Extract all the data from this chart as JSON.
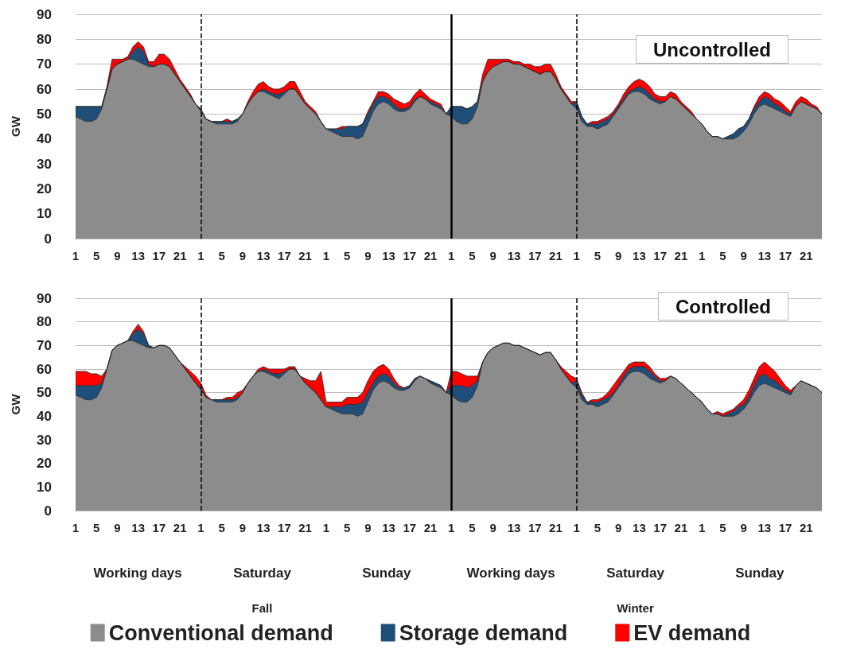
{
  "chart_data": [
    {
      "type": "area",
      "stacked": true,
      "title": "Uncontrolled",
      "ylabel": "GW",
      "categories": [
        "1",
        null,
        null,
        null,
        "5",
        null,
        null,
        null,
        "9",
        null,
        null,
        null,
        "13",
        null,
        null,
        null,
        "17",
        null,
        null,
        null,
        "21",
        null,
        null,
        null,
        "1",
        null,
        null,
        null,
        "5",
        null,
        null,
        null,
        "9",
        null,
        null,
        null,
        "13",
        null,
        null,
        null,
        "17",
        null,
        null,
        null,
        "21",
        null,
        null,
        null,
        "1",
        null,
        null,
        null,
        "5",
        null,
        null,
        null,
        "9",
        null,
        null,
        null,
        "13",
        null,
        null,
        null,
        "17",
        null,
        null,
        null,
        "21",
        null,
        null,
        null,
        "1",
        null,
        null,
        null,
        "5",
        null,
        null,
        null,
        "9",
        null,
        null,
        null,
        "13",
        null,
        null,
        null,
        "17",
        null,
        null,
        null,
        "21",
        null,
        null,
        null,
        "1",
        null,
        null,
        null,
        "5",
        null,
        null,
        null,
        "9",
        null,
        null,
        null,
        "13",
        null,
        null,
        null,
        "17",
        null,
        null,
        null,
        "21",
        null,
        null,
        null,
        "1",
        null,
        null,
        null,
        "5",
        null,
        null,
        null,
        "9",
        null,
        null,
        null,
        "13",
        null,
        null,
        null,
        "17",
        null,
        null,
        null,
        "21",
        null,
        null,
        null
      ],
      "ylim": [
        0,
        90
      ],
      "yticks": [
        0,
        10,
        20,
        30,
        40,
        50,
        60,
        70,
        80,
        90
      ],
      "grid": "y",
      "series": [
        {
          "color": "#8c8c8c",
          "values": [
            49,
            48,
            47,
            47,
            48,
            52,
            60,
            68,
            70,
            71,
            72,
            72,
            71,
            70,
            69,
            69,
            70,
            70,
            69,
            66,
            63,
            60,
            57,
            54,
            51,
            48,
            47,
            46,
            46,
            46,
            46,
            47,
            50,
            54,
            57,
            59,
            59,
            58,
            57,
            56,
            58,
            60,
            60,
            57,
            54,
            52,
            50,
            47,
            44,
            43,
            42,
            41,
            41,
            41,
            40,
            41,
            46,
            51,
            54,
            55,
            54,
            52,
            51,
            51,
            52,
            55,
            57,
            56,
            54,
            53,
            52,
            50,
            49,
            47,
            46,
            46,
            48,
            53,
            63,
            67,
            69,
            70,
            71,
            71,
            70,
            70,
            69,
            68,
            67,
            66,
            67,
            67,
            64,
            60,
            57,
            54,
            52,
            47,
            45,
            45,
            44,
            45,
            46,
            49,
            52,
            55,
            58,
            59,
            59,
            58,
            56,
            55,
            54,
            55,
            57,
            56,
            54,
            52,
            50,
            48,
            46,
            43,
            41,
            41,
            40,
            40,
            40,
            41,
            43,
            46,
            50,
            53,
            54,
            53,
            52,
            51,
            50,
            49,
            53,
            55,
            54,
            53,
            52,
            50
          ]
        },
        {
          "color": "#1f4e79",
          "values": [
            4,
            5,
            6,
            6,
            5,
            1,
            0,
            0,
            0,
            0,
            0,
            3,
            6,
            5,
            1,
            0,
            0,
            0,
            0,
            0,
            0,
            0,
            0,
            0,
            1,
            0,
            0,
            1,
            1,
            1,
            1,
            1,
            0,
            0,
            0,
            0,
            1,
            1,
            1,
            2,
            1,
            0,
            0,
            0,
            0,
            0,
            0,
            0,
            0,
            1,
            2,
            3,
            4,
            4,
            5,
            5,
            4,
            3,
            3,
            2,
            2,
            2,
            1,
            1,
            1,
            1,
            0,
            0,
            1,
            1,
            1,
            0,
            4,
            6,
            7,
            6,
            5,
            2,
            0,
            0,
            0,
            0,
            0,
            0,
            0,
            0,
            0,
            0,
            0,
            0,
            0,
            0,
            0,
            0,
            0,
            0,
            3,
            2,
            1,
            1,
            2,
            2,
            2,
            1,
            1,
            1,
            1,
            1,
            2,
            2,
            2,
            1,
            1,
            0,
            0,
            0,
            0,
            0,
            0,
            0,
            0,
            0,
            0,
            0,
            0,
            1,
            2,
            3,
            2,
            2,
            2,
            2,
            3,
            3,
            2,
            2,
            1,
            1,
            0,
            0,
            0,
            0,
            0,
            0
          ]
        },
        {
          "color": "#ff0000",
          "values": [
            0,
            0,
            0,
            0,
            0,
            0,
            1,
            4,
            2,
            1,
            1,
            2,
            2,
            2,
            1,
            2,
            4,
            4,
            3,
            2,
            1,
            1,
            1,
            0,
            0,
            0,
            0,
            0,
            0,
            1,
            0,
            0,
            0,
            1,
            2,
            3,
            3,
            2,
            2,
            2,
            2,
            3,
            3,
            2,
            1,
            1,
            1,
            0,
            0,
            0,
            0,
            1,
            0,
            0,
            0,
            0,
            1,
            1,
            2,
            2,
            2,
            2,
            3,
            2,
            2,
            2,
            3,
            2,
            1,
            1,
            1,
            0,
            0,
            0,
            0,
            0,
            0,
            0,
            3,
            5,
            3,
            2,
            1,
            1,
            1,
            1,
            1,
            2,
            2,
            3,
            3,
            3,
            2,
            1,
            1,
            1,
            0,
            0,
            0,
            1,
            1,
            1,
            1,
            1,
            1,
            2,
            2,
            3,
            3,
            3,
            3,
            2,
            2,
            2,
            2,
            2,
            1,
            1,
            1,
            0,
            0,
            0,
            0,
            0,
            0,
            0,
            0,
            0,
            0,
            0,
            1,
            2,
            2,
            2,
            2,
            2,
            2,
            1,
            2,
            2,
            2,
            1,
            1,
            0
          ]
        }
      ]
    },
    {
      "type": "area",
      "stacked": true,
      "title": "Controlled",
      "ylabel": "GW",
      "legend": "bottom",
      "annotations": [
        "Working days",
        "Saturday",
        "Sunday",
        "Working days",
        "Saturday",
        "Sunday",
        "Fall",
        "Winter"
      ],
      "categories": [
        "1",
        null,
        null,
        null,
        "5",
        null,
        null,
        null,
        "9",
        null,
        null,
        null,
        "13",
        null,
        null,
        null,
        "17",
        null,
        null,
        null,
        "21",
        null,
        null,
        null,
        "1",
        null,
        null,
        null,
        "5",
        null,
        null,
        null,
        "9",
        null,
        null,
        null,
        "13",
        null,
        null,
        null,
        "17",
        null,
        null,
        null,
        "21",
        null,
        null,
        null,
        "1",
        null,
        null,
        null,
        "5",
        null,
        null,
        null,
        "9",
        null,
        null,
        null,
        "13",
        null,
        null,
        null,
        "17",
        null,
        null,
        null,
        "21",
        null,
        null,
        null,
        "1",
        null,
        null,
        null,
        "5",
        null,
        null,
        null,
        "9",
        null,
        null,
        null,
        "13",
        null,
        null,
        null,
        "17",
        null,
        null,
        null,
        "21",
        null,
        null,
        null,
        "1",
        null,
        null,
        null,
        "5",
        null,
        null,
        null,
        "9",
        null,
        null,
        null,
        "13",
        null,
        null,
        null,
        "17",
        null,
        null,
        null,
        "21",
        null,
        null,
        null,
        "1",
        null,
        null,
        null,
        "5",
        null,
        null,
        null,
        "9",
        null,
        null,
        null,
        "13",
        null,
        null,
        null,
        "17",
        null,
        null,
        null,
        "21",
        null,
        null,
        null
      ],
      "ylim": [
        0,
        90
      ],
      "yticks": [
        0,
        10,
        20,
        30,
        40,
        50,
        60,
        70,
        80,
        90
      ],
      "grid": "y",
      "series": [
        {
          "name": "Conventional demand",
          "color": "#8c8c8c",
          "values": [
            49,
            48,
            47,
            47,
            48,
            52,
            60,
            68,
            70,
            71,
            72,
            72,
            71,
            70,
            69,
            69,
            70,
            70,
            69,
            66,
            63,
            60,
            57,
            54,
            51,
            48,
            47,
            46,
            46,
            46,
            46,
            47,
            50,
            54,
            57,
            59,
            59,
            58,
            57,
            56,
            58,
            60,
            60,
            57,
            54,
            52,
            50,
            47,
            44,
            43,
            42,
            41,
            41,
            41,
            40,
            41,
            46,
            51,
            54,
            55,
            54,
            52,
            51,
            51,
            52,
            55,
            57,
            56,
            54,
            53,
            52,
            50,
            49,
            47,
            46,
            46,
            48,
            53,
            63,
            67,
            69,
            70,
            71,
            71,
            70,
            70,
            69,
            68,
            67,
            66,
            67,
            67,
            64,
            60,
            57,
            54,
            52,
            47,
            45,
            45,
            44,
            45,
            46,
            49,
            52,
            55,
            58,
            59,
            59,
            58,
            56,
            55,
            54,
            55,
            57,
            56,
            54,
            52,
            50,
            48,
            46,
            43,
            41,
            41,
            40,
            40,
            40,
            41,
            43,
            46,
            50,
            53,
            54,
            53,
            52,
            51,
            50,
            49,
            53,
            55,
            54,
            53,
            52,
            50
          ]
        },
        {
          "name": "Storage demand",
          "color": "#1f4e79",
          "values": [
            4,
            5,
            6,
            6,
            5,
            2,
            0,
            0,
            0,
            0,
            0,
            3,
            6,
            5,
            1,
            0,
            0,
            0,
            0,
            0,
            0,
            0,
            0,
            0,
            1,
            0,
            0,
            1,
            1,
            1,
            1,
            1,
            0,
            0,
            0,
            0,
            1,
            1,
            1,
            2,
            1,
            0,
            0,
            0,
            0,
            0,
            0,
            0,
            0,
            1,
            2,
            3,
            4,
            4,
            5,
            5,
            4,
            3,
            3,
            3,
            3,
            2,
            1,
            1,
            1,
            1,
            0,
            0,
            1,
            1,
            1,
            0,
            4,
            6,
            7,
            6,
            5,
            2,
            0,
            0,
            0,
            0,
            0,
            0,
            0,
            0,
            0,
            0,
            0,
            0,
            0,
            0,
            0,
            0,
            0,
            0,
            3,
            2,
            1,
            1,
            2,
            2,
            2,
            1,
            1,
            2,
            2,
            2,
            2,
            3,
            3,
            2,
            1,
            0,
            0,
            0,
            0,
            0,
            0,
            0,
            0,
            0,
            0,
            0,
            0,
            1,
            2,
            3,
            2,
            2,
            3,
            4,
            4,
            3,
            3,
            2,
            1,
            1,
            0,
            0,
            0,
            0,
            0,
            0
          ]
        },
        {
          "name": "EV demand",
          "color": "#ff0000",
          "values": [
            6,
            6,
            6,
            5,
            5,
            3,
            0,
            0,
            0,
            0,
            0,
            1,
            2,
            1,
            0,
            0,
            0,
            0,
            0,
            0,
            0,
            1,
            2,
            3,
            2,
            1,
            0,
            0,
            0,
            1,
            1,
            2,
            1,
            0,
            0,
            1,
            1,
            1,
            2,
            2,
            1,
            1,
            1,
            0,
            2,
            3,
            5,
            12,
            2,
            2,
            2,
            2,
            3,
            3,
            3,
            4,
            5,
            5,
            4,
            4,
            3,
            2,
            1,
            0,
            0,
            0,
            0,
            0,
            0,
            0,
            0,
            0,
            6,
            6,
            5,
            5,
            4,
            2,
            0,
            0,
            0,
            0,
            0,
            0,
            0,
            0,
            0,
            0,
            0,
            0,
            0,
            0,
            0,
            1,
            2,
            3,
            1,
            1,
            0,
            1,
            1,
            1,
            2,
            3,
            3,
            2,
            2,
            2,
            2,
            2,
            2,
            1,
            1,
            1,
            0,
            0,
            0,
            0,
            0,
            0,
            0,
            0,
            0,
            1,
            1,
            1,
            1,
            1,
            2,
            3,
            3,
            4,
            5,
            5,
            4,
            3,
            2,
            1,
            0,
            0,
            0,
            0,
            0,
            0
          ]
        }
      ]
    }
  ]
}
